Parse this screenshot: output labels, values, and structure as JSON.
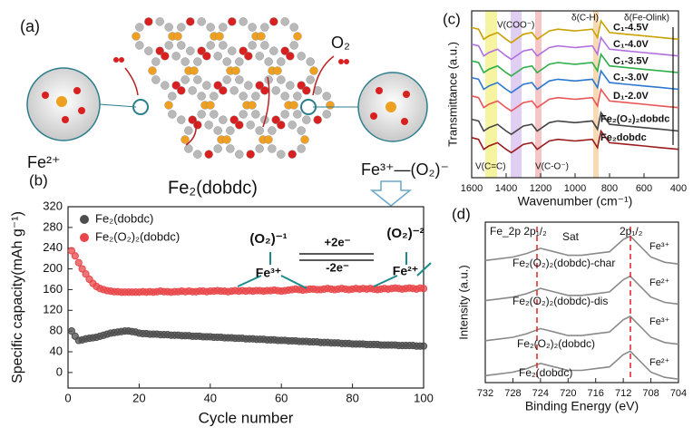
{
  "diagram": {
    "label": "(a)",
    "texts": [
      "Fe²⁺",
      "O₂",
      "Fe³⁺—(O₂)⁻",
      "Fe₂(dobdc)"
    ]
  },
  "chart_data": [
    {
      "type": "scatter",
      "panel_label": "(b)",
      "x_label": "Cycle number",
      "y_label": "Specific capacity(mAh g⁻¹)",
      "x": [
        1,
        2,
        3,
        4,
        5,
        6,
        7,
        8,
        9,
        10,
        11,
        12,
        13,
        14,
        15,
        16,
        17,
        18,
        19,
        20,
        21,
        22,
        23,
        24,
        25,
        26,
        27,
        28,
        29,
        30,
        31,
        32,
        33,
        34,
        35,
        36,
        37,
        38,
        39,
        40,
        41,
        42,
        43,
        44,
        45,
        46,
        47,
        48,
        49,
        50,
        51,
        52,
        53,
        54,
        55,
        56,
        57,
        58,
        59,
        60,
        61,
        62,
        63,
        64,
        65,
        66,
        67,
        68,
        69,
        70,
        71,
        72,
        73,
        74,
        75,
        76,
        77,
        78,
        79,
        80,
        81,
        82,
        83,
        84,
        85,
        86,
        87,
        88,
        89,
        90,
        91,
        92,
        93,
        94,
        95,
        96,
        97,
        98,
        99,
        100
      ],
      "xlim": [
        0,
        100
      ],
      "xticks": [
        0,
        20,
        40,
        60,
        80,
        100
      ],
      "ylim": [
        -30,
        320
      ],
      "yticks": [
        0,
        40,
        80,
        120,
        160,
        200,
        240,
        280,
        320
      ],
      "legend": "upper left",
      "series": [
        {
          "name": "Fe₂(dobdc)",
          "color": "#4d4d4d",
          "values": [
            80,
            70,
            62,
            63,
            65,
            66,
            67,
            68,
            70,
            72,
            74,
            76,
            77,
            78,
            79,
            80,
            80,
            79,
            78,
            76,
            75,
            75,
            74,
            74,
            74,
            73,
            73,
            73,
            72,
            72,
            72,
            71,
            71,
            71,
            70,
            70,
            70,
            69,
            69,
            69,
            68,
            68,
            68,
            67,
            67,
            67,
            66,
            66,
            66,
            65,
            65,
            65,
            64,
            64,
            64,
            63,
            63,
            63,
            62,
            62,
            62,
            61,
            61,
            61,
            60,
            60,
            60,
            59,
            59,
            59,
            58,
            58,
            58,
            57,
            57,
            57,
            56,
            56,
            56,
            55,
            55,
            55,
            55,
            54,
            54,
            54,
            54,
            53,
            53,
            53,
            53,
            53,
            52,
            52,
            52,
            52,
            52,
            51,
            51,
            51
          ]
        },
        {
          "name": "Fe₂(O₂)₂(dobdc)",
          "color": "#e8474a",
          "values": [
            235,
            225,
            212,
            200,
            190,
            180,
            172,
            166,
            162,
            160,
            158,
            157,
            156,
            156,
            155,
            155,
            155,
            155,
            155,
            155,
            156,
            155,
            156,
            155,
            156,
            157,
            156,
            156,
            155,
            156,
            156,
            157,
            156,
            157,
            156,
            156,
            157,
            157,
            156,
            157,
            157,
            158,
            157,
            157,
            156,
            157,
            158,
            157,
            158,
            157,
            158,
            157,
            158,
            158,
            157,
            158,
            158,
            159,
            158,
            157,
            158,
            159,
            160,
            161,
            160,
            159,
            160,
            161,
            161,
            160,
            160,
            161,
            162,
            161,
            160,
            161,
            162,
            161,
            160,
            161,
            162,
            161,
            162,
            161,
            162,
            161,
            160,
            161,
            162,
            161,
            162,
            163,
            162,
            161,
            162,
            163,
            162,
            161,
            163,
            162
          ]
        }
      ],
      "annotations": [
        "(O₂)⁻¹",
        "Fe³⁺",
        "+2e⁻",
        "-2e⁻",
        "(O₂)⁻²",
        "Fe²⁺"
      ]
    },
    {
      "type": "line",
      "panel_label": "(c)",
      "x_label": "Wavenumber (cm⁻¹)",
      "y_label": "Transmittance (a.u.)",
      "x": [
        1600,
        1560,
        1530,
        1500,
        1450,
        1400,
        1370,
        1300,
        1250,
        1220,
        1150,
        1100,
        1000,
        900,
        870,
        850,
        800,
        700,
        600,
        500,
        400
      ],
      "xlim": [
        1600,
        400
      ],
      "xticks": [
        1600,
        1400,
        1200,
        1000,
        800,
        600,
        400
      ],
      "ylim": [
        0,
        100
      ],
      "series": [
        {
          "name": "C₁-4.5V",
          "color": "#c9a100",
          "values": [
            90,
            89,
            83,
            85,
            87,
            83,
            81,
            86,
            87,
            83,
            88,
            89,
            88,
            89,
            84,
            94,
            87,
            86,
            85,
            84,
            83
          ]
        },
        {
          "name": "C₁-4.0V",
          "color": "#b06fe0",
          "values": [
            80,
            79,
            73,
            75,
            77,
            73,
            71,
            76,
            77,
            73,
            78,
            79,
            78,
            79,
            74,
            84,
            77,
            76,
            75,
            74,
            73
          ]
        },
        {
          "name": "C₁-3.5V",
          "color": "#2fae4a",
          "values": [
            70,
            69,
            63,
            65,
            67,
            63,
            61,
            66,
            67,
            63,
            68,
            69,
            68,
            69,
            64,
            74,
            67,
            66,
            65,
            64,
            63
          ]
        },
        {
          "name": "C₁-3.0V",
          "color": "#2b78d0",
          "values": [
            60,
            59,
            53,
            55,
            57,
            53,
            51,
            56,
            57,
            53,
            58,
            59,
            58,
            59,
            54,
            64,
            57,
            56,
            55,
            54,
            53
          ]
        },
        {
          "name": "D₁-2.0V",
          "color": "#e85555",
          "values": [
            49,
            48,
            42,
            44,
            46,
            42,
            40,
            45,
            46,
            42,
            47,
            48,
            47,
            48,
            43,
            53,
            46,
            45,
            44,
            43,
            42
          ]
        },
        {
          "name": "Fe₂(O₂)₂dobdc",
          "color": "#444444",
          "values": [
            35,
            34,
            28,
            30,
            32,
            28,
            26,
            31,
            32,
            28,
            33,
            34,
            33,
            34,
            29,
            39,
            32,
            31,
            30,
            29,
            28
          ]
        },
        {
          "name": "Fe₂dobdc",
          "color": "#9b1b1b",
          "values": [
            24,
            23,
            17,
            19,
            21,
            17,
            15,
            20,
            21,
            17,
            22,
            23,
            22,
            23,
            18,
            28,
            21,
            20,
            19,
            18,
            17
          ]
        }
      ],
      "annotations": [
        "V(COO⁻)",
        "δ(C-H)",
        "δ(Fe-Olink)",
        "V(C=C)",
        "V(C-O⁻)"
      ]
    },
    {
      "type": "line",
      "panel_label": "(d)",
      "x_label": "Binding Energy (eV)",
      "y_label": "Intensity (a.u.)",
      "x": [
        732,
        730,
        728,
        726,
        724,
        722,
        720,
        718,
        716,
        714,
        712,
        711,
        710,
        708,
        706,
        704
      ],
      "xlim": [
        732,
        704
      ],
      "xticks": [
        732,
        728,
        724,
        720,
        716,
        712,
        708,
        704
      ],
      "ylim": [
        0,
        92
      ],
      "series": [
        {
          "name": "Fe₂(O₂)₂(dobdc)-char",
          "color": "#8a8a8a",
          "values": [
            70,
            71,
            72,
            74,
            77,
            75,
            73,
            73,
            74,
            75,
            82,
            84,
            80,
            72,
            69,
            68
          ]
        },
        {
          "name": "Fe₂(O₂)₂(dobdc)-dis",
          "color": "#8a8a8a",
          "values": [
            47,
            48,
            49,
            51,
            54,
            52,
            50,
            50,
            51,
            52,
            59,
            61,
            57,
            49,
            46,
            45
          ]
        },
        {
          "name": "Fe₂(O₂)₂(dobdc)",
          "color": "#8a8a8a",
          "values": [
            24,
            25,
            26,
            28,
            31,
            29,
            27,
            27,
            28,
            29,
            36,
            38,
            34,
            26,
            23,
            22
          ]
        },
        {
          "name": "Fe₂(dobdc)",
          "color": "#8a8a8a",
          "values": [
            4,
            5,
            6,
            8,
            11,
            9,
            7,
            7,
            8,
            9,
            16,
            18,
            14,
            6,
            3,
            2
          ]
        }
      ],
      "states": [
        "Fe³⁺",
        "Fe²⁺",
        "Fe³⁺",
        "Fe²⁺"
      ],
      "annotations": [
        "Fe_2p 2p₁/₂",
        "Sat",
        "2p₁/₂"
      ]
    }
  ]
}
